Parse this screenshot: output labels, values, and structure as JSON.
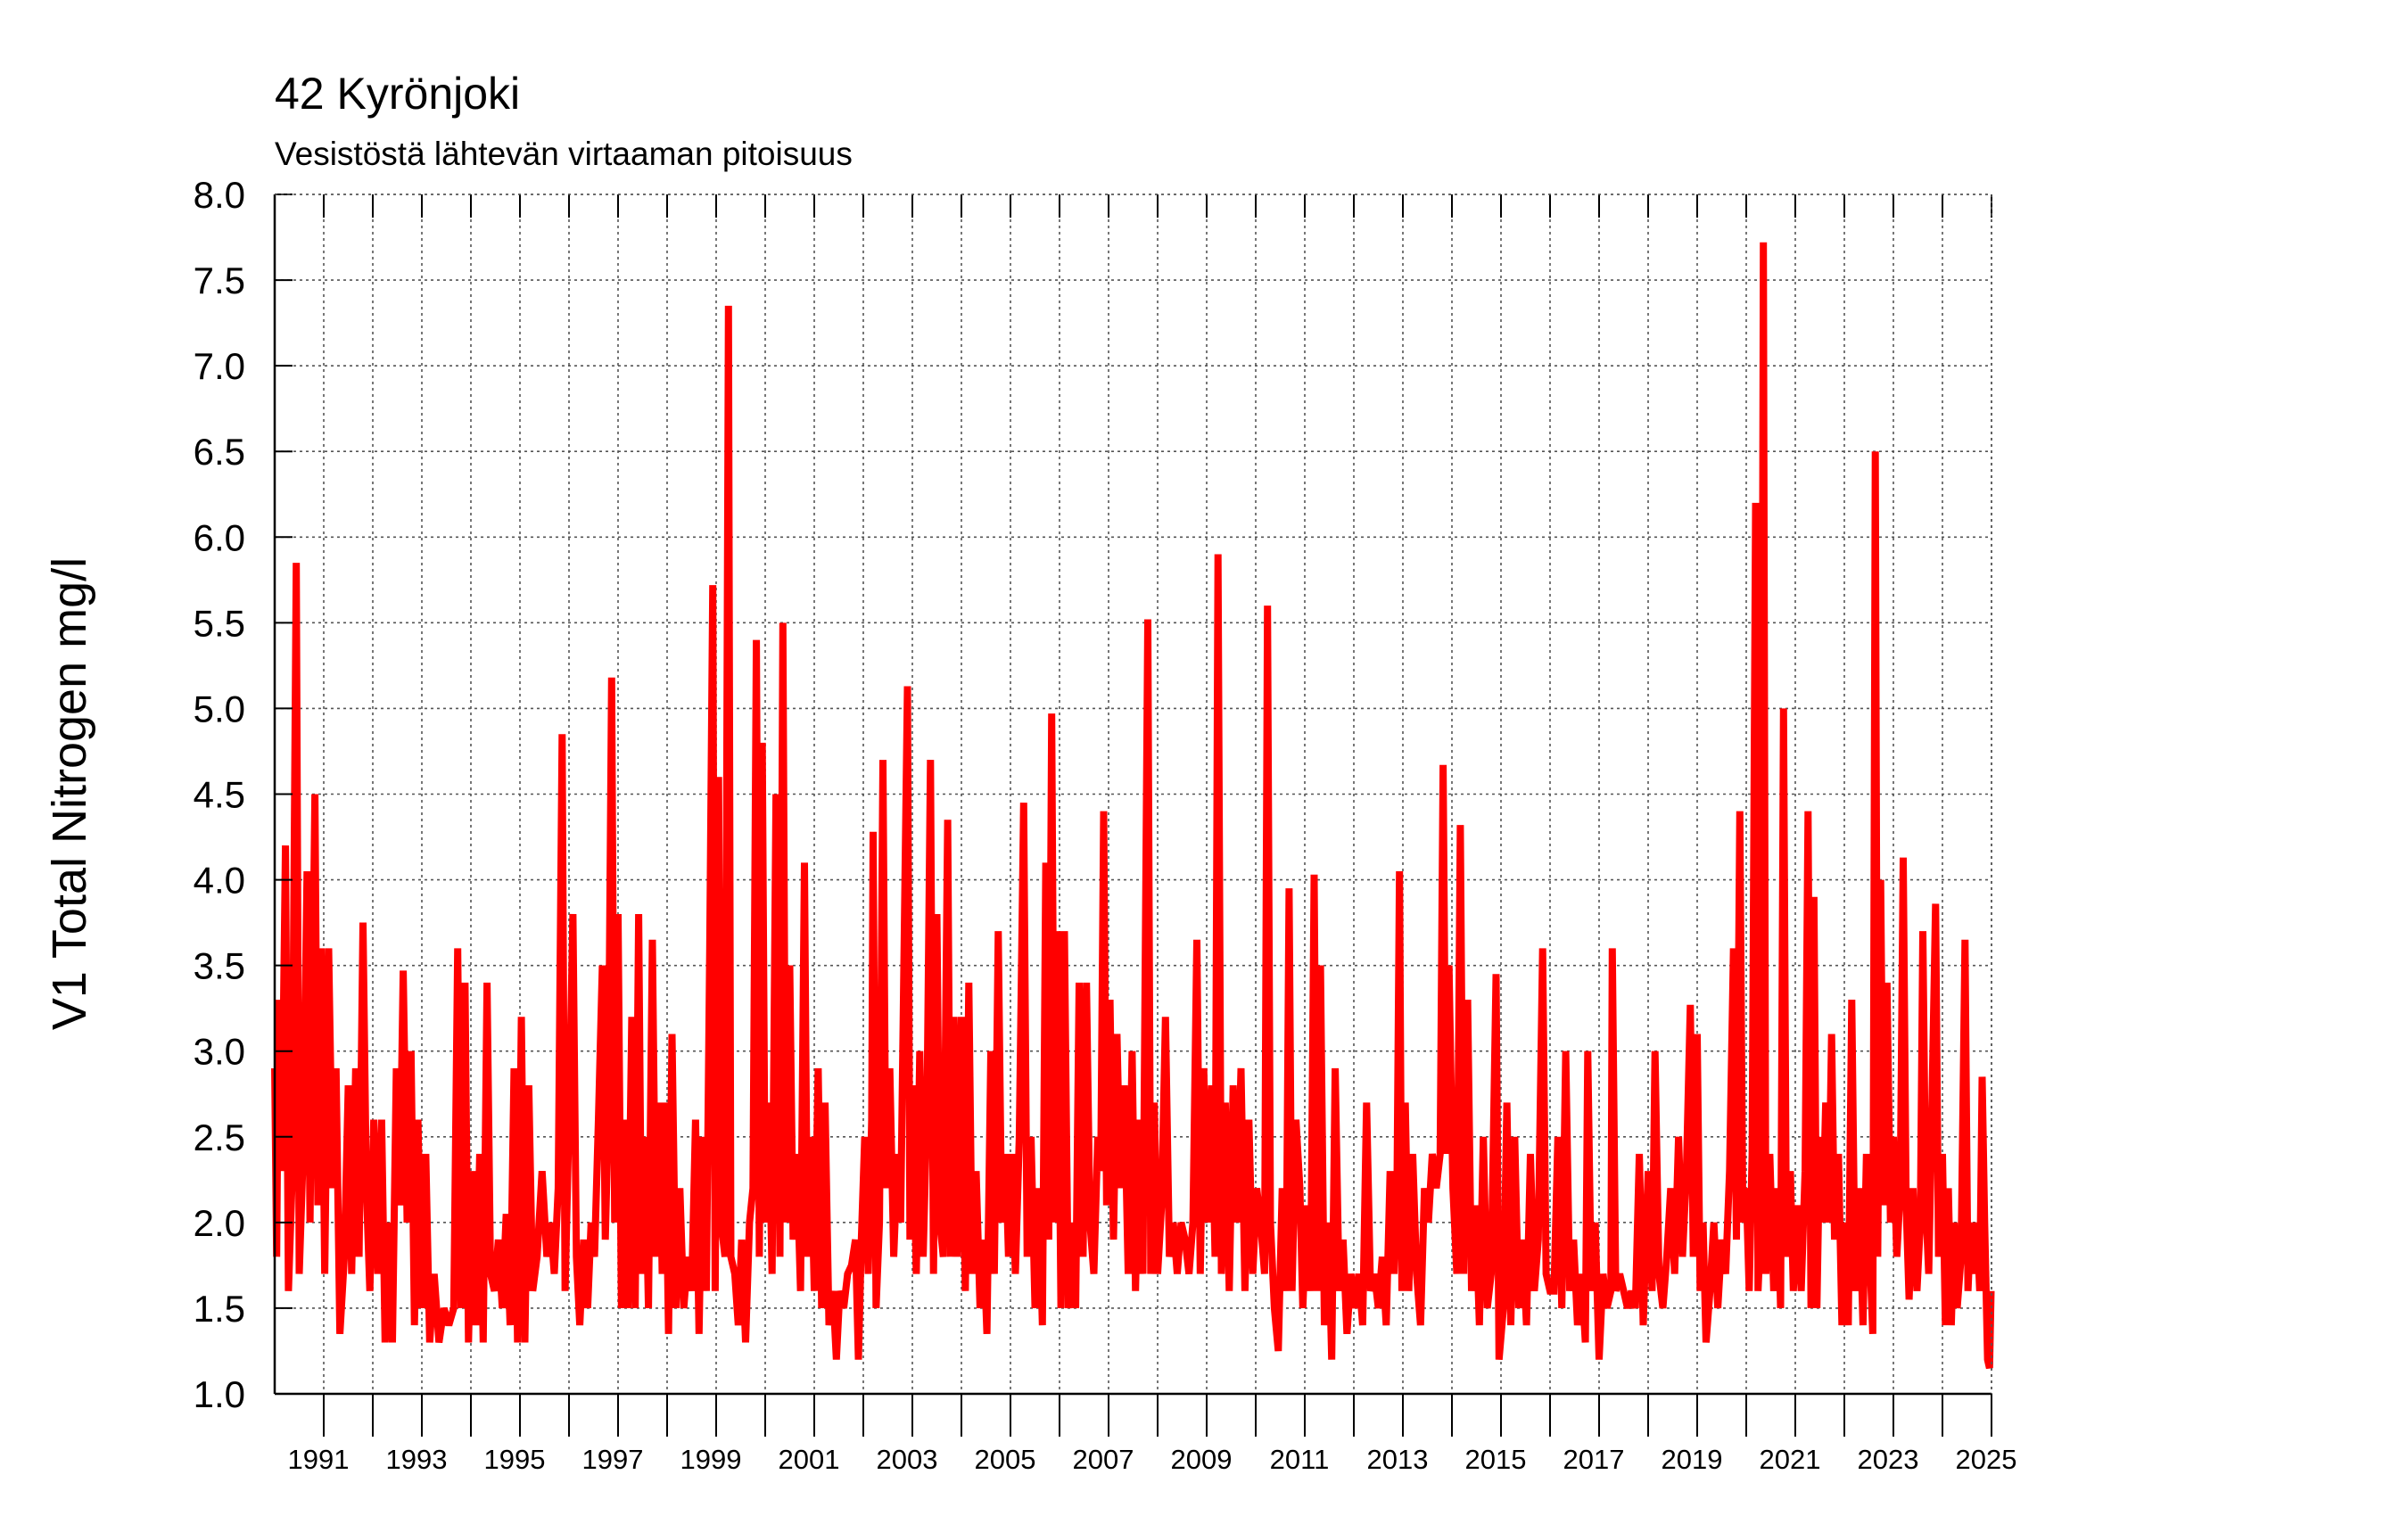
{
  "chart_data": {
    "type": "line",
    "title": "42 Kyrönjoki",
    "subtitle": "Vesistöstä lähtevän virtaaman pitoisuus",
    "ylabel": "V1 Total Nitrogen mg/l",
    "color": "#ff0000",
    "grid": true,
    "xlim": [
      1990,
      2025
    ],
    "ylim": [
      1,
      8
    ],
    "xticks": [
      1991,
      1993,
      1995,
      1997,
      1999,
      2001,
      2003,
      2005,
      2007,
      2009,
      2011,
      2013,
      2015,
      2017,
      2019,
      2021,
      2023,
      2025
    ],
    "xminorticks": [
      1992,
      1994,
      1996,
      1998,
      2000,
      2002,
      2004,
      2006,
      2008,
      2010,
      2012,
      2014,
      2016,
      2018,
      2020,
      2022,
      2024
    ],
    "yticks": [
      {
        "value": 1,
        "label": "1.0"
      },
      1.5,
      {
        "value": 2,
        "label": "2.0"
      },
      2.5,
      {
        "value": 3,
        "label": "3.0"
      },
      3.5,
      {
        "value": 4,
        "label": "4.0"
      },
      4.5,
      {
        "value": 5,
        "label": "5.0"
      },
      5.5,
      {
        "value": 6,
        "label": "6.0"
      },
      6.5,
      {
        "value": 7,
        "label": "7.0"
      },
      7.5,
      {
        "value": 8,
        "label": "8.0"
      }
    ],
    "x": [
      1990.0,
      1990.04,
      1990.08,
      1990.14,
      1990.22,
      1990.28,
      1990.35,
      1990.44,
      1990.5,
      1990.58,
      1990.66,
      1990.72,
      1990.82,
      1990.88,
      1990.95,
      1991.02,
      1991.1,
      1991.18,
      1991.25,
      1991.33,
      1991.42,
      1991.5,
      1991.57,
      1991.65,
      1991.72,
      1991.8,
      1991.87,
      1991.94,
      1992.02,
      1992.1,
      1992.18,
      1992.25,
      1992.33,
      1992.4,
      1992.48,
      1992.55,
      1992.62,
      1992.7,
      1992.78,
      1992.85,
      1992.92,
      1993.0,
      1993.08,
      1993.16,
      1993.25,
      1993.35,
      1993.45,
      1993.55,
      1993.65,
      1993.73,
      1993.8,
      1993.88,
      1993.95,
      1994.03,
      1994.1,
      1994.18,
      1994.25,
      1994.33,
      1994.4,
      1994.48,
      1994.56,
      1994.64,
      1994.72,
      1994.8,
      1994.88,
      1994.95,
      1995.03,
      1995.1,
      1995.18,
      1995.26,
      1995.35,
      1995.45,
      1995.55,
      1995.62,
      1995.7,
      1995.78,
      1995.86,
      1995.92,
      1996.0,
      1996.08,
      1996.15,
      1996.22,
      1996.3,
      1996.38,
      1996.45,
      1996.52,
      1996.6,
      1996.68,
      1996.74,
      1996.8,
      1996.87,
      1996.93,
      1997.0,
      1997.07,
      1997.14,
      1997.2,
      1997.28,
      1997.35,
      1997.42,
      1997.48,
      1997.55,
      1997.62,
      1997.7,
      1997.77,
      1997.84,
      1997.9,
      1997.96,
      1998.03,
      1998.1,
      1998.18,
      1998.26,
      1998.34,
      1998.42,
      1998.5,
      1998.58,
      1998.65,
      1998.72,
      1998.8,
      1998.87,
      1998.93,
      1998.98,
      1999.05,
      1999.1,
      1999.18,
      1999.25,
      1999.3,
      1999.38,
      1999.45,
      1999.52,
      1999.6,
      1999.68,
      1999.75,
      1999.82,
      1999.88,
      1999.94,
      2000.0,
      2000.07,
      2000.14,
      2000.22,
      2000.3,
      2000.36,
      2000.42,
      2000.5,
      2000.57,
      2000.64,
      2000.72,
      2000.8,
      2000.86,
      2000.93,
      2001.0,
      2001.08,
      2001.15,
      2001.22,
      2001.3,
      2001.38,
      2001.45,
      2001.52,
      2001.6,
      2001.68,
      2001.76,
      2001.84,
      2001.9,
      2001.96,
      2002.03,
      2002.1,
      2002.17,
      2002.2,
      2002.26,
      2002.33,
      2002.4,
      2002.46,
      2002.54,
      2002.62,
      2002.7,
      2002.76,
      2002.9,
      2002.95,
      2003.0,
      2003.08,
      2003.15,
      2003.22,
      2003.3,
      2003.37,
      2003.43,
      2003.5,
      2003.56,
      2003.63,
      2003.72,
      2003.78,
      2003.85,
      2003.92,
      2004.0,
      2004.08,
      2004.15,
      2004.22,
      2004.3,
      2004.38,
      2004.45,
      2004.52,
      2004.6,
      2004.67,
      2004.75,
      2004.82,
      2004.9,
      2004.96,
      2005.03,
      2005.1,
      2005.18,
      2005.27,
      2005.34,
      2005.42,
      2005.5,
      2005.58,
      2005.65,
      2005.72,
      2005.78,
      2005.84,
      2005.9,
      2005.96,
      2006.03,
      2006.1,
      2006.18,
      2006.26,
      2006.33,
      2006.4,
      2006.48,
      2006.55,
      2006.62,
      2006.7,
      2006.78,
      2006.84,
      2006.9,
      2006.96,
      2007.03,
      2007.1,
      2007.17,
      2007.24,
      2007.32,
      2007.4,
      2007.48,
      2007.55,
      2007.62,
      2007.7,
      2007.8,
      2007.86,
      2007.93,
      2008.0,
      2008.08,
      2008.16,
      2008.24,
      2008.32,
      2008.4,
      2008.48,
      2008.56,
      2008.64,
      2008.72,
      2008.8,
      2008.87,
      2008.94,
      2009.02,
      2009.1,
      2009.17,
      2009.23,
      2009.3,
      2009.38,
      2009.46,
      2009.54,
      2009.62,
      2009.7,
      2009.78,
      2009.86,
      2009.94,
      2010.02,
      2010.1,
      2010.18,
      2010.24,
      2010.3,
      2010.38,
      2010.46,
      2010.54,
      2010.62,
      2010.68,
      2010.74,
      2010.82,
      2010.9,
      2010.96,
      2011.04,
      2011.12,
      2011.19,
      2011.25,
      2011.32,
      2011.4,
      2011.48,
      2011.55,
      2011.62,
      2011.7,
      2011.78,
      2011.86,
      2011.94,
      2012.02,
      2012.1,
      2012.18,
      2012.26,
      2012.34,
      2012.42,
      2012.5,
      2012.58,
      2012.66,
      2012.74,
      2012.82,
      2012.88,
      2012.93,
      2012.98,
      2013.05,
      2013.12,
      2013.2,
      2013.28,
      2013.36,
      2013.44,
      2013.52,
      2013.6,
      2013.68,
      2013.76,
      2013.82,
      2013.88,
      2013.94,
      2014.02,
      2014.1,
      2014.17,
      2014.24,
      2014.32,
      2014.4,
      2014.48,
      2014.56,
      2014.64,
      2014.72,
      2014.8,
      2014.9,
      2014.96,
      2015.05,
      2015.12,
      2015.2,
      2015.28,
      2015.36,
      2015.44,
      2015.52,
      2015.6,
      2015.68,
      2015.76,
      2015.85,
      2015.92,
      2016.0,
      2016.08,
      2016.16,
      2016.24,
      2016.32,
      2016.4,
      2016.48,
      2016.56,
      2016.64,
      2016.72,
      2016.77,
      2016.84,
      2016.92,
      2017.0,
      2017.08,
      2017.16,
      2017.24,
      2017.27,
      2017.34,
      2017.42,
      2017.5,
      2017.58,
      2017.66,
      2017.74,
      2017.82,
      2017.9,
      2018.0,
      2018.08,
      2018.14,
      2018.22,
      2018.3,
      2018.38,
      2018.46,
      2018.54,
      2018.62,
      2018.7,
      2018.78,
      2018.86,
      2018.92,
      2019.0,
      2019.06,
      2019.12,
      2019.18,
      2019.26,
      2019.34,
      2019.42,
      2019.5,
      2019.58,
      2019.66,
      2019.74,
      2019.8,
      2019.87,
      2019.93,
      2020.0,
      2020.06,
      2020.12,
      2020.19,
      2020.24,
      2020.3,
      2020.35,
      2020.4,
      2020.48,
      2020.56,
      2020.64,
      2020.7,
      2020.76,
      2020.82,
      2020.9,
      2020.96,
      2021.04,
      2021.12,
      2021.2,
      2021.26,
      2021.32,
      2021.38,
      2021.44,
      2021.5,
      2021.56,
      2021.62,
      2021.68,
      2021.74,
      2021.8,
      2021.88,
      2021.95,
      2022.02,
      2022.08,
      2022.15,
      2022.22,
      2022.3,
      2022.38,
      2022.45,
      2022.52,
      2022.58,
      2022.63,
      2022.68,
      2022.74,
      2022.8,
      2022.87,
      2022.94,
      2023.0,
      2023.07,
      2023.14,
      2023.2,
      2023.26,
      2023.32,
      2023.4,
      2023.48,
      2023.55,
      2023.6,
      2023.66,
      2023.72,
      2023.78,
      2023.86,
      2023.92,
      2024.0,
      2024.06,
      2024.12,
      2024.18,
      2024.24,
      2024.3,
      2024.38,
      2024.46,
      2024.52,
      2024.58,
      2024.64,
      2024.7,
      2024.76,
      2024.81,
      2024.86,
      2024.92,
      2024.96,
      2024.99
    ],
    "values": [
      2.9,
      1.8,
      3.3,
      2.3,
      4.2,
      1.6,
      2.2,
      5.85,
      1.7,
      2.4,
      4.05,
      2.0,
      4.5,
      2.1,
      3.6,
      1.7,
      3.6,
      2.2,
      2.9,
      1.35,
      1.8,
      2.8,
      1.7,
      2.9,
      1.8,
      3.75,
      2.2,
      1.6,
      2.6,
      1.7,
      2.6,
      1.3,
      2.0,
      1.3,
      2.9,
      2.1,
      3.47,
      2.0,
      3.0,
      1.4,
      2.6,
      1.5,
      2.4,
      1.3,
      1.7,
      1.3,
      1.5,
      1.4,
      1.5,
      3.6,
      1.5,
      3.4,
      1.3,
      2.3,
      1.4,
      2.4,
      1.3,
      3.4,
      1.7,
      1.6,
      1.9,
      1.5,
      2.05,
      1.4,
      2.9,
      1.3,
      3.2,
      1.3,
      2.8,
      1.6,
      1.8,
      2.3,
      1.8,
      2.0,
      1.7,
      2.2,
      4.85,
      1.6,
      2.6,
      3.8,
      1.8,
      1.4,
      1.9,
      1.5,
      2.0,
      1.8,
      2.6,
      3.5,
      1.9,
      2.6,
      5.18,
      2.0,
      3.8,
      1.5,
      2.6,
      1.5,
      3.2,
      1.5,
      3.8,
      1.7,
      2.5,
      1.5,
      3.65,
      1.8,
      2.7,
      1.7,
      2.7,
      1.35,
      3.1,
      1.5,
      2.2,
      1.5,
      1.8,
      1.6,
      2.6,
      1.35,
      2.5,
      1.6,
      3.6,
      5.72,
      1.6,
      4.6,
      2.0,
      1.8,
      7.35,
      1.8,
      1.7,
      1.4,
      1.9,
      1.3,
      2.0,
      2.2,
      5.4,
      1.8,
      4.8,
      2.0,
      2.7,
      1.7,
      4.5,
      1.8,
      5.5,
      2.0,
      3.5,
      1.9,
      2.4,
      1.6,
      4.1,
      1.8,
      2.5,
      1.6,
      2.9,
      1.5,
      2.7,
      1.4,
      1.6,
      1.2,
      1.6,
      1.5,
      1.7,
      1.75,
      1.9,
      1.2,
      1.9,
      2.5,
      1.7,
      2.6,
      4.28,
      1.5,
      2.0,
      4.7,
      2.2,
      2.9,
      1.8,
      2.4,
      2.0,
      5.13,
      1.9,
      2.8,
      1.7,
      3.0,
      1.8,
      2.7,
      4.7,
      1.7,
      3.8,
      2.0,
      1.8,
      4.35,
      1.8,
      3.2,
      1.8,
      3.2,
      1.6,
      3.4,
      1.7,
      2.3,
      1.5,
      1.9,
      1.35,
      3.0,
      1.7,
      3.7,
      2.0,
      2.4,
      1.8,
      2.4,
      1.7,
      2.5,
      4.45,
      1.8,
      2.5,
      1.5,
      2.2,
      1.4,
      4.1,
      1.9,
      4.97,
      2.0,
      3.7,
      1.5,
      3.7,
      1.5,
      2.0,
      1.5,
      3.4,
      1.8,
      3.4,
      2.0,
      1.7,
      2.5,
      2.3,
      4.4,
      2.1,
      3.3,
      1.9,
      3.1,
      2.2,
      2.8,
      1.7,
      3.0,
      1.6,
      2.6,
      1.7,
      5.52,
      1.7,
      2.7,
      1.7,
      2.1,
      3.2,
      1.8,
      2.0,
      1.7,
      2.0,
      1.9,
      1.7,
      2.0,
      3.65,
      1.7,
      2.9,
      2.0,
      2.8,
      1.8,
      5.9,
      1.7,
      2.7,
      1.6,
      2.8,
      2.0,
      2.9,
      1.6,
      2.6,
      1.7,
      2.2,
      2.0,
      1.7,
      5.6,
      2.0,
      1.5,
      1.25,
      2.2,
      1.6,
      3.95,
      1.6,
      2.6,
      2.2,
      1.5,
      2.1,
      1.6,
      4.03,
      1.6,
      3.5,
      1.4,
      2.0,
      1.2,
      2.9,
      1.6,
      1.9,
      1.35,
      1.7,
      1.5,
      1.7,
      1.4,
      2.7,
      1.6,
      1.7,
      1.5,
      1.8,
      1.4,
      2.3,
      1.7,
      2.2,
      4.05,
      1.6,
      2.7,
      1.6,
      2.4,
      1.7,
      1.4,
      2.2,
      2.0,
      2.4,
      2.2,
      2.4,
      4.67,
      2.4,
      3.5,
      2.2,
      1.7,
      4.32,
      1.7,
      3.3,
      1.6,
      2.1,
      1.4,
      2.5,
      1.5,
      1.7,
      3.45,
      1.2,
      1.5,
      2.7,
      1.4,
      2.5,
      1.5,
      1.9,
      1.4,
      2.4,
      1.6,
      1.9,
      3.6,
      1.7,
      1.6,
      1.6,
      2.5,
      1.5,
      3.0,
      1.6,
      1.9,
      1.4,
      1.7,
      1.3,
      3.0,
      1.6,
      2.0,
      1.2,
      1.7,
      1.5,
      1.6,
      3.6,
      1.6,
      1.7,
      1.6,
      1.5,
      1.6,
      1.5,
      2.4,
      1.4,
      2.3,
      1.6,
      3.0,
      1.7,
      1.5,
      1.8,
      2.2,
      1.7,
      2.5,
      1.8,
      2.3,
      3.27,
      1.8,
      3.1,
      1.6,
      2.0,
      1.3,
      1.6,
      2.0,
      1.5,
      1.9,
      1.7,
      2.3,
      3.6,
      1.9,
      4.4,
      2.0,
      2.2,
      1.6,
      2.4,
      6.2,
      1.6,
      2.0,
      7.72,
      1.7,
      2.4,
      1.6,
      2.2,
      1.5,
      5.0,
      1.8,
      2.3,
      1.6,
      2.1,
      1.6,
      2.3,
      4.4,
      1.5,
      3.9,
      1.5,
      2.5,
      2.0,
      2.7,
      2.0,
      3.1,
      1.9,
      2.4,
      1.4,
      2.0,
      1.4,
      3.3,
      1.6,
      2.2,
      1.4,
      2.4,
      1.8,
      1.35,
      6.5,
      1.8,
      4.0,
      2.1,
      3.4,
      2.0,
      2.5,
      1.8,
      2.2,
      4.13,
      2.1,
      1.55,
      2.2,
      1.6,
      2.0,
      3.7,
      2.1,
      1.7,
      2.6,
      3.86,
      1.8,
      2.4,
      1.4,
      2.2,
      1.4,
      2.0,
      1.5,
      1.8,
      3.65,
      1.6,
      2.0,
      1.7,
      2.0,
      1.6,
      2.85,
      2.0,
      1.2,
      1.15,
      1.6
    ]
  }
}
